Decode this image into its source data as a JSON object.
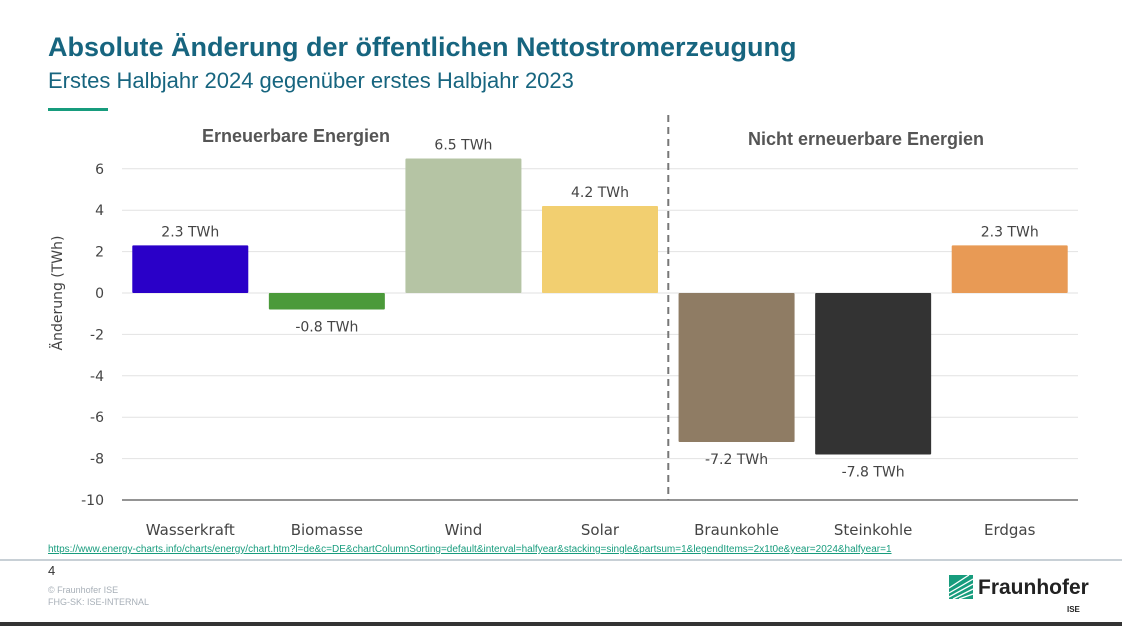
{
  "header": {
    "title": "Absolute Änderung der öffentlichen Nettostromerzeugung",
    "subtitle": "Erstes Halbjahr 2024 gegenüber erstes Halbjahr 2023"
  },
  "chart_data": {
    "type": "bar",
    "ylabel": "Änderung (TWh)",
    "ylim": [
      -10,
      7
    ],
    "yticks": [
      6,
      4,
      2,
      0,
      -2,
      -4,
      -6,
      -8,
      -10
    ],
    "grid": true,
    "categories": [
      "Wasserkraft",
      "Biomasse",
      "Wind",
      "Solar",
      "Braunkohle",
      "Steinkohle",
      "Erdgas"
    ],
    "values": [
      2.3,
      -0.8,
      6.5,
      4.2,
      -7.2,
      -7.8,
      2.3
    ],
    "data_labels": [
      "2.3 TWh",
      "-0.8 TWh",
      "6.5 TWh",
      "4.2 TWh",
      "-7.2 TWh",
      "-7.8 TWh",
      "2.3 TWh"
    ],
    "colors": [
      "#2a00c8",
      "#4b9a3a",
      "#b5c4a4",
      "#f2cf70",
      "#8f7c64",
      "#333333",
      "#e89a55"
    ],
    "groups": [
      {
        "label": "Erneuerbare Energien",
        "categories": [
          "Wasserkraft",
          "Biomasse",
          "Wind",
          "Solar"
        ]
      },
      {
        "label": "Nicht erneuerbare Energien",
        "categories": [
          "Braunkohle",
          "Steinkohle",
          "Erdgas"
        ]
      }
    ]
  },
  "footer": {
    "url": "https://www.energy-charts.info/charts/energy/chart.htm?l=de&c=DE&chartColumnSorting=default&interval=halfyear&stacking=single&partsum=1&legendItems=2x1t0e&year=2024&halfyear=1",
    "page_number": "4",
    "copyright": "© Fraunhofer ISE",
    "classification": "FHG-SK: ISE-INTERNAL",
    "logo_text": "Fraunhofer",
    "logo_sub": "ISE"
  }
}
